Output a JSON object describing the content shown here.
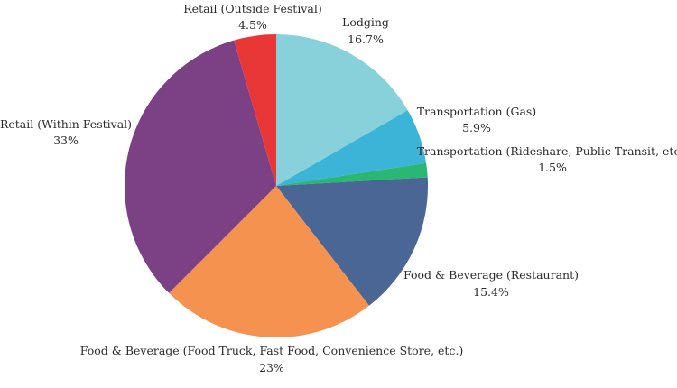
{
  "chart_data": {
    "type": "pie",
    "start_angle_deg": 0,
    "direction": "clockwise",
    "slices": [
      {
        "label": "Lodging",
        "value": 16.7,
        "value_label": "16.7%",
        "color": "#88d0da"
      },
      {
        "label": "Transportation (Gas)",
        "value": 5.9,
        "value_label": "5.9%",
        "color": "#3cb4d8"
      },
      {
        "label": "Transportation (Rideshare, Public Transit, etc.)",
        "value": 1.5,
        "value_label": "1.5%",
        "color": "#2ab673"
      },
      {
        "label": "Food & Beverage (Restaurant)",
        "value": 15.4,
        "value_label": "15.4%",
        "color": "#4a6695"
      },
      {
        "label": "Food & Beverage (Food Truck, Fast Food, Convenience Store, etc.)",
        "value": 23,
        "value_label": "23%",
        "color": "#f5924f"
      },
      {
        "label": "Retail (Within Festival)",
        "value": 33,
        "value_label": "33%",
        "color": "#7c4184"
      },
      {
        "label": "Retail (Outside Festival)",
        "value": 4.5,
        "value_label": "4.5%",
        "color": "#e93636"
      }
    ]
  }
}
